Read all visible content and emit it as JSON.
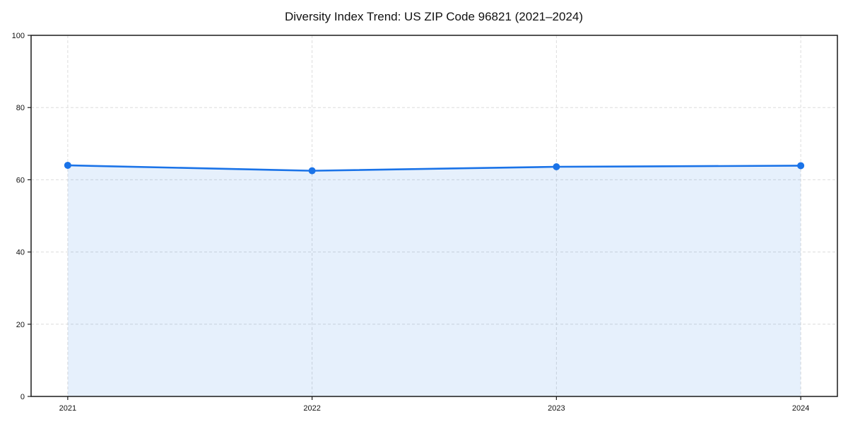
{
  "chart_data": {
    "type": "area",
    "title": "Diversity Index Trend: US ZIP Code 96821 (2021–2024)",
    "x": [
      2021,
      2022,
      2023,
      2024
    ],
    "series": [
      {
        "name": "Diversity Index",
        "values": [
          64.0,
          62.5,
          63.6,
          63.9
        ]
      }
    ],
    "xlabel": "",
    "ylabel": "",
    "xlim": [
      2020.85,
      2024.15
    ],
    "ylim": [
      0,
      100
    ],
    "xticks": [
      2021,
      2022,
      2023,
      2024
    ],
    "yticks": [
      0,
      20,
      40,
      60,
      80,
      100
    ],
    "grid": "dashed-both-axes",
    "legend": "none",
    "colors": {
      "line": "#1a73e8",
      "marker": "#1a73e8",
      "fill": "#1a73e8",
      "fill_opacity": 0.11,
      "grid": "#dcdcdc",
      "axis": "#1a1a1a",
      "tick_text": "#111111",
      "background": "#ffffff"
    }
  }
}
